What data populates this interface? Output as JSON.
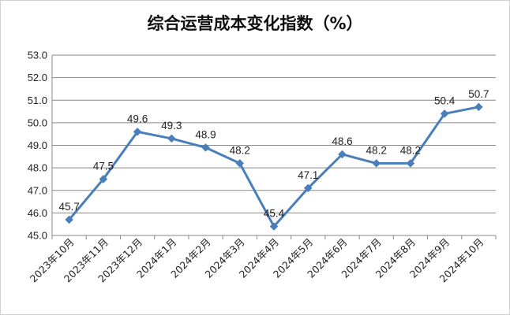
{
  "chart_data": {
    "type": "line",
    "title": "综合运营成本变化指数（%）",
    "xlabel": "",
    "ylabel": "",
    "categories": [
      "2023年10月",
      "2023年11月",
      "2023年12月",
      "2024年1月",
      "2024年2月",
      "2024年3月",
      "2024年4月",
      "2024年5月",
      "2024年6月",
      "2024年7月",
      "2024年8月",
      "2024年9月",
      "2024年10月"
    ],
    "series": [
      {
        "values": [
          45.7,
          47.5,
          49.6,
          49.3,
          48.9,
          48.2,
          45.4,
          47.1,
          48.6,
          48.2,
          48.2,
          50.4,
          50.7
        ]
      }
    ],
    "value_labels": [
      "45.7",
      "47.5",
      "49.6",
      "49.3",
      "48.9",
      "48.2",
      "45.4",
      "47.1",
      "48.6",
      "48.2",
      "48.2",
      "50.4",
      "50.7"
    ],
    "ylim": [
      45.0,
      53.0
    ],
    "yticks": [
      "45.0",
      "46.0",
      "47.0",
      "48.0",
      "49.0",
      "50.0",
      "51.0",
      "52.0",
      "53.0"
    ],
    "grid": true,
    "legend": "none",
    "marker": "diamond",
    "colors": {
      "line": "#4a7ebb",
      "grid": "#878787",
      "axis": "#878787",
      "text": "#222222"
    }
  }
}
